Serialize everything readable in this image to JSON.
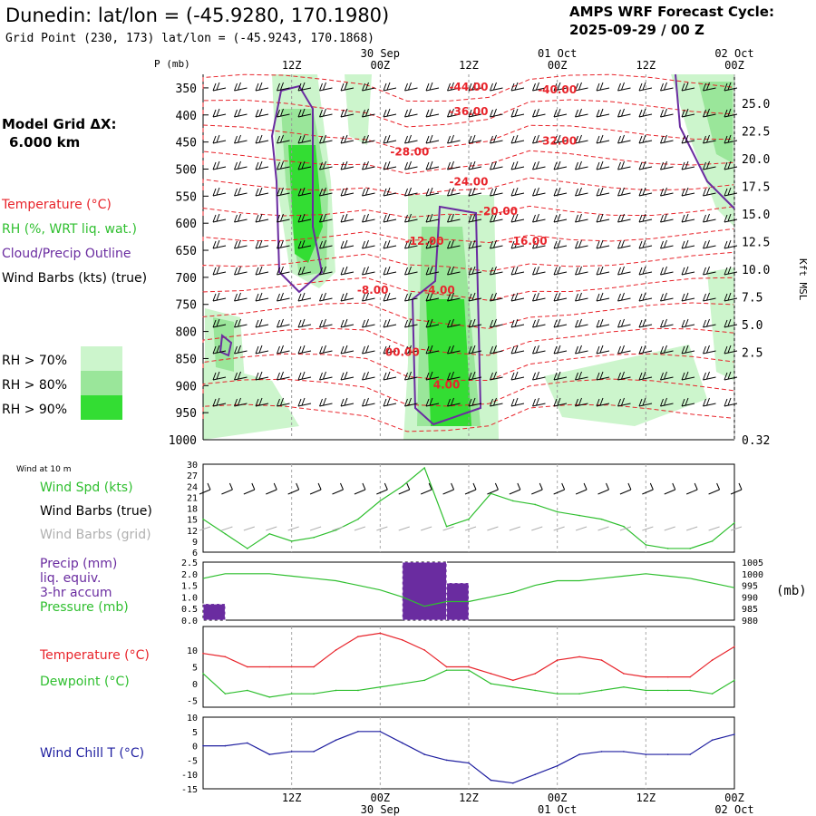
{
  "header": {
    "title": "Dunedin:  lat/lon = (-45.9280, 170.1980)",
    "subtitle": "Grid Point (230, 173) lat/lon = (-45.9243, 170.1868)",
    "cycle_label": "AMPS WRF Forecast Cycle:",
    "cycle_value": "2025-09-29 / 00  Z"
  },
  "sidebar": {
    "grid_label": "Model Grid ΔX:",
    "grid_value": "6.000 km",
    "legend": [
      {
        "text": "Temperature (°C)",
        "color": "#e8242b"
      },
      {
        "text": "RH (%, WRT liq. wat.)",
        "color": "#2fbf2f"
      },
      {
        "text": "Cloud/Precip Outline",
        "color": "#6a2ca0"
      },
      {
        "text": "Wind Barbs (kts) (true)",
        "color": "#000000"
      }
    ],
    "rh_legend": [
      {
        "text": "RH > 70%",
        "color": "#ccf5cc"
      },
      {
        "text": "RH > 80%",
        "color": "#9ae69a"
      },
      {
        "text": "RH > 90%",
        "color": "#33dd33"
      }
    ]
  },
  "time_axis": {
    "top_hours": [
      "12Z",
      "00Z",
      "12Z",
      "00Z",
      "12Z",
      "00Z"
    ],
    "top_dates": [
      "30 Sep",
      "01 Oct",
      "02 Oct"
    ],
    "bottom_hours": [
      "12Z",
      "00Z",
      "12Z",
      "00Z",
      "12Z",
      "00Z"
    ],
    "bottom_dates": [
      "30 Sep",
      "01 Oct",
      "02 Oct"
    ]
  },
  "chart_data": [
    {
      "type": "heatmap",
      "name": "cross-section",
      "ylabel": "P (mb)",
      "right_label": "Kft MSL",
      "pressure_ticks": [
        "350",
        "400",
        "450",
        "500",
        "550",
        "600",
        "650",
        "700",
        "750",
        "800",
        "850",
        "900",
        "950",
        "1000"
      ],
      "height_ticks": [
        "25.0",
        "22.5",
        "20.0",
        "17.5",
        "15.0",
        "12.5",
        "10.0",
        "7.5",
        "5.0",
        "2.5",
        "0.32"
      ],
      "temperature_labels": [
        {
          "text": "-44.00",
          "hour": 36,
          "p": 355
        },
        {
          "text": "-40.00",
          "hour": 48,
          "p": 360
        },
        {
          "text": "-36.00",
          "hour": 36,
          "p": 400
        },
        {
          "text": "-32.00",
          "hour": 48,
          "p": 455
        },
        {
          "text": "-28.00",
          "hour": 28,
          "p": 475
        },
        {
          "text": "-24.00",
          "hour": 36,
          "p": 530
        },
        {
          "text": "-20.00",
          "hour": 40,
          "p": 585
        },
        {
          "text": "-12.00",
          "hour": 30,
          "p": 640
        },
        {
          "text": "-16.00",
          "hour": 44,
          "p": 640
        },
        {
          "text": "-8.00",
          "hour": 23,
          "p": 730
        },
        {
          "text": "-4.00",
          "hour": 32,
          "p": 730
        },
        {
          "text": "00.00",
          "hour": 27,
          "p": 845
        },
        {
          "text": "4.00",
          "hour": 33,
          "p": 905
        }
      ]
    },
    {
      "type": "line",
      "name": "wind-10m",
      "title": "Wind at 10 m",
      "labels": [
        {
          "text": "Wind Spd (kts)",
          "color": "#2fbf2f"
        },
        {
          "text": "Wind Barbs (true)",
          "color": "#000000"
        },
        {
          "text": "Wind Barbs (grid)",
          "color": "#b0b0b0"
        }
      ],
      "yticks": [
        "30",
        "27",
        "24",
        "21",
        "18",
        "15",
        "12",
        "9",
        "6"
      ],
      "ylim": [
        6,
        30
      ],
      "x": [
        0,
        3,
        6,
        9,
        12,
        15,
        18,
        21,
        24,
        27,
        30,
        33,
        36,
        39,
        42,
        45,
        48,
        51,
        54,
        57,
        60,
        63,
        66,
        69,
        72
      ],
      "series": [
        {
          "color": "#2fbf2f",
          "values": [
            15,
            11,
            7,
            11,
            9,
            10,
            12,
            15,
            20,
            24,
            29,
            13,
            15,
            22,
            20,
            19,
            17,
            16,
            15,
            13,
            8,
            7,
            7,
            9,
            14
          ]
        }
      ]
    },
    {
      "type": "bar",
      "name": "precip-pressure",
      "labels": [
        {
          "text": "Precip (mm)",
          "color": "#6a2ca0"
        },
        {
          "text": "liq. equiv.",
          "color": "#6a2ca0"
        },
        {
          "text": "3-hr accum",
          "color": "#6a2ca0"
        },
        {
          "text": "Pressure (mb)",
          "color": "#2fbf2f"
        }
      ],
      "yticks_left": [
        "2.5",
        "2.0",
        "1.5",
        "1.0",
        "0.5",
        "0.0"
      ],
      "yticks_right": [
        "1005",
        "1000",
        "995",
        "990",
        "985",
        "980"
      ],
      "right_unit": "(mb)",
      "ylim": [
        0,
        2.5
      ],
      "ylim_right": [
        980,
        1005
      ],
      "precip": [
        {
          "start": 0,
          "end": 3,
          "value": 0.7
        },
        {
          "start": 27,
          "end": 33,
          "value": 2.5
        },
        {
          "start": 33,
          "end": 36,
          "value": 1.6
        }
      ],
      "pressure": {
        "x": [
          0,
          3,
          6,
          9,
          12,
          15,
          18,
          21,
          24,
          27,
          30,
          33,
          36,
          39,
          42,
          45,
          48,
          51,
          54,
          57,
          60,
          63,
          66,
          69,
          72
        ],
        "values": [
          998,
          1000,
          1000,
          1000,
          999,
          998,
          997,
          995,
          993,
          990,
          986,
          988,
          988,
          990,
          992,
          995,
          997,
          997,
          998,
          999,
          1000,
          999,
          998,
          996,
          994
        ]
      }
    },
    {
      "type": "line",
      "name": "temperature-dewpoint",
      "labels": [
        {
          "text": "Temperature (°C)",
          "color": "#e8242b"
        },
        {
          "text": "Dewpoint (°C)",
          "color": "#2fbf2f"
        }
      ],
      "yticks": [
        "10",
        "5",
        "0",
        "-5"
      ],
      "ylim": [
        -7,
        17
      ],
      "x": [
        0,
        3,
        6,
        9,
        12,
        15,
        18,
        21,
        24,
        27,
        30,
        33,
        36,
        39,
        42,
        45,
        48,
        51,
        54,
        57,
        60,
        63,
        66,
        69,
        72
      ],
      "series": [
        {
          "name": "Temperature (°C)",
          "color": "#e8242b",
          "values": [
            9,
            8,
            5,
            5,
            5,
            5,
            10,
            14,
            15,
            13,
            10,
            5,
            5,
            3,
            1,
            3,
            7,
            8,
            7,
            3,
            2,
            2,
            2,
            7,
            11
          ]
        },
        {
          "name": "Dewpoint (°C)",
          "color": "#2fbf2f",
          "values": [
            3,
            -3,
            -2,
            -4,
            -3,
            -3,
            -2,
            -2,
            -1,
            0,
            1,
            4,
            4,
            0,
            -1,
            -2,
            -3,
            -3,
            -2,
            -1,
            -2,
            -2,
            -2,
            -3,
            1
          ]
        }
      ]
    },
    {
      "type": "line",
      "name": "wind-chill",
      "labels": [
        {
          "text": "Wind Chill T (°C)",
          "color": "#1f1fa0"
        }
      ],
      "yticks": [
        "10",
        "5",
        "0",
        "-5",
        "-10",
        "-15"
      ],
      "ylim": [
        -15,
        10
      ],
      "x": [
        0,
        3,
        6,
        9,
        12,
        15,
        18,
        21,
        24,
        27,
        30,
        33,
        36,
        39,
        42,
        45,
        48,
        51,
        54,
        57,
        60,
        63,
        66,
        69,
        72
      ],
      "series": [
        {
          "name": "Wind Chill T (°C)",
          "color": "#1f1fa0",
          "values": [
            0,
            0,
            1,
            -3,
            -2,
            -2,
            2,
            5,
            5,
            1,
            -3,
            -5,
            -6,
            -12,
            -13,
            -10,
            -7,
            -3,
            -2,
            -2,
            -3,
            -3,
            -3,
            2,
            4
          ]
        }
      ]
    }
  ]
}
